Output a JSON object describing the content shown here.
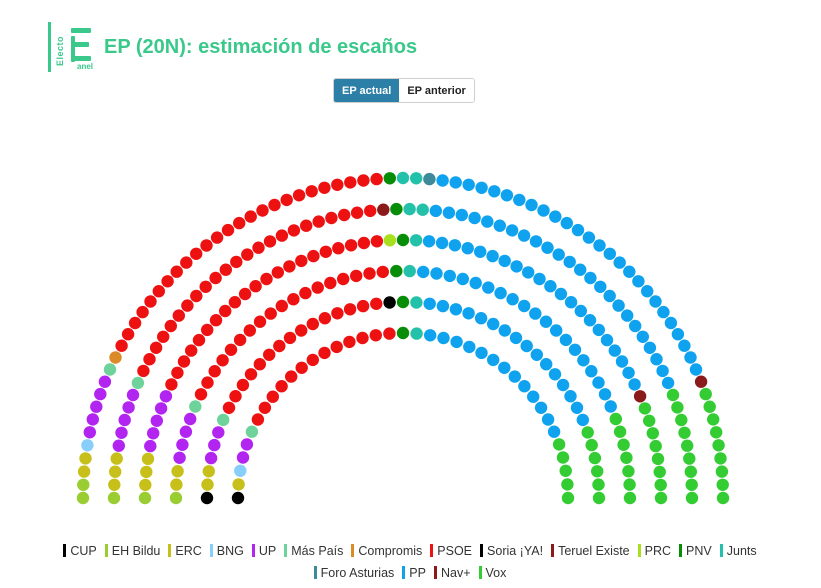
{
  "header": {
    "logo_text_vertical": "Electo",
    "logo_text_small": "anel",
    "title": "EP (20N): estimación de escaños"
  },
  "toggle": {
    "actual_label": "EP actual",
    "anterior_label": "EP anterior"
  },
  "colors": {
    "brand": "#3ac98a",
    "toggle_active": "#2c7fa6"
  },
  "chart_data": {
    "type": "parliament",
    "total_seats": 350,
    "parties": [
      {
        "name": "CUP",
        "seats": 2,
        "color": "#000000"
      },
      {
        "name": "EH Bildu",
        "seats": 5,
        "color": "#9acd32"
      },
      {
        "name": "ERC",
        "seats": 13,
        "color": "#c8c01a"
      },
      {
        "name": "BNG",
        "seats": 2,
        "color": "#87cefa"
      },
      {
        "name": "UP",
        "seats": 24,
        "color": "#b225f0"
      },
      {
        "name": "Más País",
        "seats": 5,
        "color": "#6ed39b"
      },
      {
        "name": "Compromis",
        "seats": 1,
        "color": "#da8a26"
      },
      {
        "name": "PSOE",
        "seats": 115,
        "color": "#ee1111"
      },
      {
        "name": "Soria ¡YA!",
        "seats": 1,
        "color": "#000000"
      },
      {
        "name": "Teruel Existe",
        "seats": 1,
        "color": "#8b1a1a"
      },
      {
        "name": "PRC",
        "seats": 1,
        "color": "#a8e020"
      },
      {
        "name": "PNV",
        "seats": 6,
        "color": "#078d07"
      },
      {
        "name": "Junts",
        "seats": 8,
        "color": "#24c1aa"
      },
      {
        "name": "Foro Asturias",
        "seats": 1,
        "color": "#3d8a9a"
      },
      {
        "name": "PP",
        "seats": 119,
        "color": "#0ea2ef"
      },
      {
        "name": "Nav+",
        "seats": 2,
        "color": "#8b1a1a"
      },
      {
        "name": "Vox",
        "seats": 44,
        "color": "#33cc33"
      }
    ]
  },
  "legend": [
    {
      "label": "CUP",
      "color": "#000000"
    },
    {
      "label": "EH Bildu",
      "color": "#9acd32"
    },
    {
      "label": "ERC",
      "color": "#c8c01a"
    },
    {
      "label": "BNG",
      "color": "#87cefa"
    },
    {
      "label": "UP",
      "color": "#b225f0"
    },
    {
      "label": "Más País",
      "color": "#6ed39b"
    },
    {
      "label": "Compromis",
      "color": "#da8a26"
    },
    {
      "label": "PSOE",
      "color": "#ee1111"
    },
    {
      "label": "Soria ¡YA!",
      "color": "#000000"
    },
    {
      "label": "Teruel Existe",
      "color": "#8b1a1a"
    },
    {
      "label": "PRC",
      "color": "#a8e020"
    },
    {
      "label": "PNV",
      "color": "#078d07"
    },
    {
      "label": "Junts",
      "color": "#24c1aa"
    },
    {
      "label": "Foro Asturias",
      "color": "#3d8a9a"
    },
    {
      "label": "PP",
      "color": "#0ea2ef"
    },
    {
      "label": "Nav+",
      "color": "#8b1a1a"
    },
    {
      "label": "Vox",
      "color": "#33cc33"
    }
  ]
}
